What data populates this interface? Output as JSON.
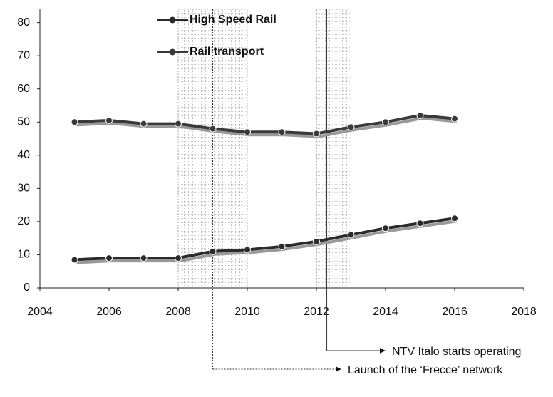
{
  "chart_data": {
    "type": "line",
    "x": [
      2005,
      2006,
      2007,
      2008,
      2009,
      2010,
      2011,
      2012,
      2013,
      2014,
      2015,
      2016
    ],
    "series": [
      {
        "name": "High Speed Rail",
        "color": "#2b2b2b",
        "values": [
          8.5,
          9,
          9,
          9,
          11,
          11.5,
          12.5,
          14,
          16,
          18,
          19.5,
          21
        ]
      },
      {
        "name": "Rail transport",
        "color": "#3a3a3a",
        "values": [
          50,
          50.5,
          49.5,
          49.5,
          48,
          47,
          47,
          46.5,
          48.5,
          50,
          52,
          51
        ]
      }
    ],
    "xlim": [
      2004,
      2018
    ],
    "xticks": [
      2004,
      2006,
      2008,
      2010,
      2012,
      2014,
      2016,
      2018
    ],
    "ylim": [
      0,
      84
    ],
    "yticks": [
      0,
      10,
      20,
      30,
      40,
      50,
      60,
      70,
      80
    ],
    "shaded_regions": [
      [
        2008,
        2010
      ],
      [
        2012,
        2013
      ]
    ],
    "annotations": [
      {
        "text": "NTV Italo starts operating",
        "x": 2012.3
      },
      {
        "text": "Launch of the ‘Frecce’ network",
        "x": 2009
      }
    ]
  }
}
